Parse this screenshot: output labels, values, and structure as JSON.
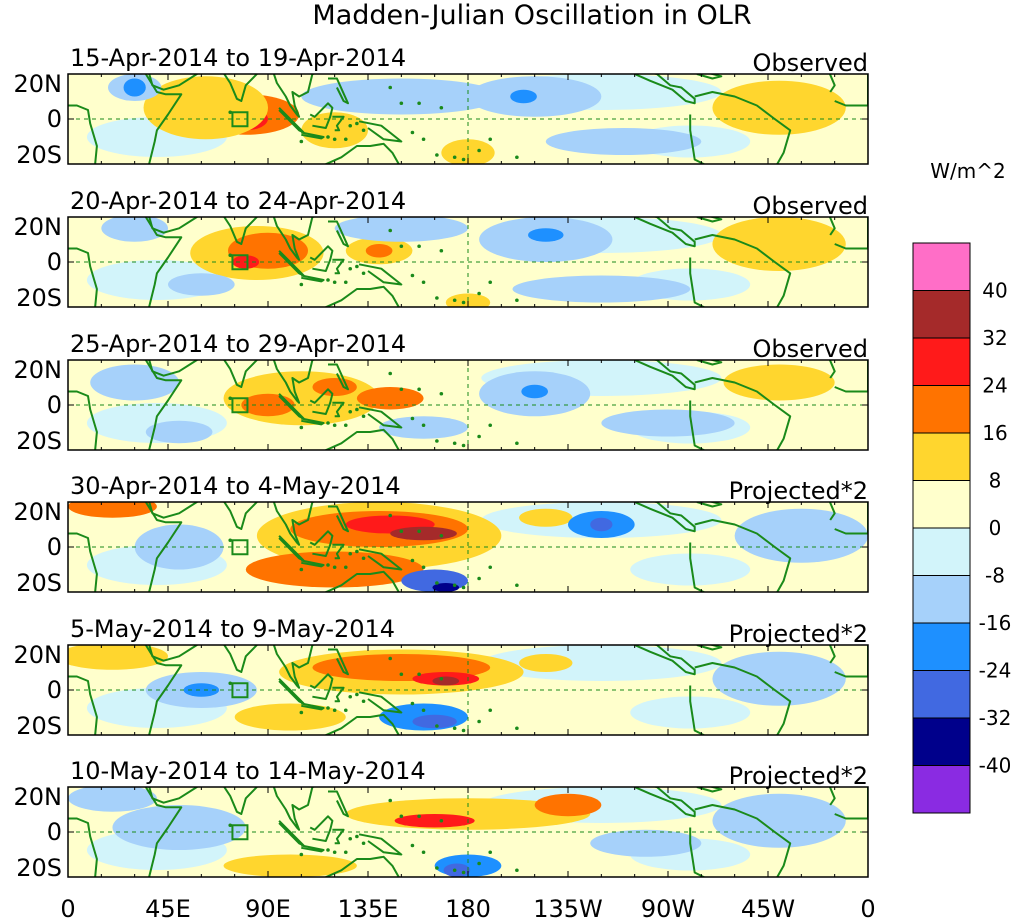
{
  "title": "Madden-Julian Oscillation in OLR",
  "panels": [
    {
      "period": "15-Apr-2014 to 19-Apr-2014",
      "type": "Observed"
    },
    {
      "period": "20-Apr-2014 to 24-Apr-2014",
      "type": "Observed"
    },
    {
      "period": "25-Apr-2014 to 29-Apr-2014",
      "type": "Observed"
    },
    {
      "period": "30-Apr-2014 to 4-May-2014",
      "type": "Projected*2"
    },
    {
      "period": "5-May-2014 to 9-May-2014",
      "type": "Projected*2"
    },
    {
      "period": "10-May-2014 to 14-May-2014",
      "type": "Projected*2"
    }
  ],
  "lat_labels": [
    "20N",
    "0",
    "20S"
  ],
  "lon_labels": [
    "0",
    "45E",
    "90E",
    "135E",
    "180",
    "135W",
    "90W",
    "45W",
    "0"
  ],
  "colorbar": {
    "unit": "W/m^2",
    "labels": [
      "40",
      "32",
      "24",
      "16",
      "8",
      "0",
      "-8",
      "-16",
      "-24",
      "-32",
      "-40"
    ],
    "colors": [
      "#ff6ec7",
      "#a52a2a",
      "#ff1a1a",
      "#ff7300",
      "#ffd62e",
      "#ffffcc",
      "#d2f4fa",
      "#a6d1fa",
      "#1e90ff",
      "#4169e1",
      "#00008b",
      "#8a2be2"
    ]
  },
  "map_colors": {
    "land": "#1a8a1a",
    "zero": "#ffffcc",
    "weak_neg": "#d2f4fa"
  },
  "anomalies": [
    [
      {
        "lon": 80,
        "lat": 2,
        "rx": 24,
        "ry": 9,
        "c": 3
      },
      {
        "lon": 80,
        "lat": 0,
        "rx": 10,
        "ry": 5,
        "c": 2
      },
      {
        "lon": 62,
        "lat": 5,
        "rx": 28,
        "ry": 14,
        "c": 4
      },
      {
        "lon": 30,
        "lat": 14,
        "rx": 12,
        "ry": 6,
        "c": 7
      },
      {
        "lon": 30,
        "lat": 14,
        "rx": 5,
        "ry": 4,
        "c": 8
      },
      {
        "lon": 150,
        "lat": 10,
        "rx": 45,
        "ry": 8,
        "c": 7
      },
      {
        "lon": 210,
        "lat": 10,
        "rx": 30,
        "ry": 9,
        "c": 7
      },
      {
        "lon": 205,
        "lat": 10,
        "rx": 6,
        "ry": 3,
        "c": 8
      },
      {
        "lon": 180,
        "lat": -15,
        "rx": 12,
        "ry": 6,
        "c": 4
      },
      {
        "lon": 120,
        "lat": -5,
        "rx": 15,
        "ry": 8,
        "c": 4
      },
      {
        "lon": 320,
        "lat": 5,
        "rx": 30,
        "ry": 12,
        "c": 4
      },
      {
        "lon": 250,
        "lat": -10,
        "rx": 35,
        "ry": 6,
        "c": 7
      }
    ],
    [
      {
        "lon": 85,
        "lat": 4,
        "rx": 30,
        "ry": 12,
        "c": 4
      },
      {
        "lon": 90,
        "lat": 5,
        "rx": 18,
        "ry": 8,
        "c": 3
      },
      {
        "lon": 80,
        "lat": 0,
        "rx": 6,
        "ry": 3,
        "c": 2
      },
      {
        "lon": 140,
        "lat": 5,
        "rx": 15,
        "ry": 6,
        "c": 4
      },
      {
        "lon": 140,
        "lat": 5,
        "rx": 6,
        "ry": 3,
        "c": 3
      },
      {
        "lon": 30,
        "lat": 15,
        "rx": 15,
        "ry": 6,
        "c": 7
      },
      {
        "lon": 60,
        "lat": -10,
        "rx": 15,
        "ry": 5,
        "c": 7
      },
      {
        "lon": 150,
        "lat": 15,
        "rx": 30,
        "ry": 6,
        "c": 7
      },
      {
        "lon": 215,
        "lat": 10,
        "rx": 30,
        "ry": 10,
        "c": 7
      },
      {
        "lon": 215,
        "lat": 12,
        "rx": 8,
        "ry": 3,
        "c": 8
      },
      {
        "lon": 180,
        "lat": -18,
        "rx": 10,
        "ry": 4,
        "c": 4
      },
      {
        "lon": 320,
        "lat": 8,
        "rx": 30,
        "ry": 12,
        "c": 4
      },
      {
        "lon": 240,
        "lat": -12,
        "rx": 40,
        "ry": 6,
        "c": 7
      }
    ],
    [
      {
        "lon": 105,
        "lat": 3,
        "rx": 35,
        "ry": 12,
        "c": 4
      },
      {
        "lon": 90,
        "lat": 0,
        "rx": 12,
        "ry": 5,
        "c": 3
      },
      {
        "lon": 120,
        "lat": 8,
        "rx": 10,
        "ry": 4,
        "c": 3
      },
      {
        "lon": 145,
        "lat": 3,
        "rx": 15,
        "ry": 5,
        "c": 3
      },
      {
        "lon": 30,
        "lat": 10,
        "rx": 20,
        "ry": 8,
        "c": 7
      },
      {
        "lon": 50,
        "lat": -12,
        "rx": 15,
        "ry": 5,
        "c": 7
      },
      {
        "lon": 210,
        "lat": 5,
        "rx": 25,
        "ry": 10,
        "c": 7
      },
      {
        "lon": 210,
        "lat": 6,
        "rx": 6,
        "ry": 3,
        "c": 8
      },
      {
        "lon": 160,
        "lat": -10,
        "rx": 20,
        "ry": 5,
        "c": 7
      },
      {
        "lon": 320,
        "lat": 10,
        "rx": 25,
        "ry": 8,
        "c": 4
      },
      {
        "lon": 270,
        "lat": -8,
        "rx": 30,
        "ry": 6,
        "c": 7
      }
    ],
    [
      {
        "lon": 140,
        "lat": 5,
        "rx": 55,
        "ry": 15,
        "c": 4
      },
      {
        "lon": 140,
        "lat": 8,
        "rx": 40,
        "ry": 8,
        "c": 3
      },
      {
        "lon": 145,
        "lat": 10,
        "rx": 20,
        "ry": 4,
        "c": 2
      },
      {
        "lon": 160,
        "lat": 6,
        "rx": 15,
        "ry": 3,
        "c": 1
      },
      {
        "lon": 120,
        "lat": -10,
        "rx": 40,
        "ry": 8,
        "c": 3
      },
      {
        "lon": 165,
        "lat": -15,
        "rx": 15,
        "ry": 5,
        "c": 9
      },
      {
        "lon": 170,
        "lat": -18,
        "rx": 6,
        "ry": 2,
        "c": 10
      },
      {
        "lon": 20,
        "lat": 18,
        "rx": 20,
        "ry": 5,
        "c": 3
      },
      {
        "lon": 50,
        "lat": 0,
        "rx": 20,
        "ry": 10,
        "c": 7
      },
      {
        "lon": 215,
        "lat": 13,
        "rx": 12,
        "ry": 4,
        "c": 4
      },
      {
        "lon": 240,
        "lat": 10,
        "rx": 15,
        "ry": 6,
        "c": 8
      },
      {
        "lon": 240,
        "lat": 10,
        "rx": 5,
        "ry": 3,
        "c": 9
      },
      {
        "lon": 330,
        "lat": 5,
        "rx": 30,
        "ry": 12,
        "c": 7
      }
    ],
    [
      {
        "lon": 150,
        "lat": 8,
        "rx": 55,
        "ry": 10,
        "c": 4
      },
      {
        "lon": 150,
        "lat": 10,
        "rx": 40,
        "ry": 6,
        "c": 3
      },
      {
        "lon": 170,
        "lat": 5,
        "rx": 15,
        "ry": 3,
        "c": 2
      },
      {
        "lon": 170,
        "lat": 4,
        "rx": 6,
        "ry": 2,
        "c": 1
      },
      {
        "lon": 215,
        "lat": 12,
        "rx": 12,
        "ry": 4,
        "c": 4
      },
      {
        "lon": 100,
        "lat": -12,
        "rx": 25,
        "ry": 6,
        "c": 4
      },
      {
        "lon": 160,
        "lat": -12,
        "rx": 20,
        "ry": 6,
        "c": 8
      },
      {
        "lon": 165,
        "lat": -14,
        "rx": 10,
        "ry": 3,
        "c": 9
      },
      {
        "lon": 60,
        "lat": 0,
        "rx": 25,
        "ry": 8,
        "c": 7
      },
      {
        "lon": 60,
        "lat": 0,
        "rx": 8,
        "ry": 3,
        "c": 8
      },
      {
        "lon": 20,
        "lat": 15,
        "rx": 25,
        "ry": 6,
        "c": 4
      },
      {
        "lon": 320,
        "lat": 5,
        "rx": 30,
        "ry": 12,
        "c": 7
      }
    ],
    [
      {
        "lon": 180,
        "lat": 8,
        "rx": 55,
        "ry": 7,
        "c": 4
      },
      {
        "lon": 165,
        "lat": 5,
        "rx": 18,
        "ry": 3,
        "c": 2
      },
      {
        "lon": 225,
        "lat": 12,
        "rx": 15,
        "ry": 5,
        "c": 3
      },
      {
        "lon": 100,
        "lat": -15,
        "rx": 30,
        "ry": 5,
        "c": 4
      },
      {
        "lon": 180,
        "lat": -15,
        "rx": 15,
        "ry": 5,
        "c": 8
      },
      {
        "lon": 175,
        "lat": -17,
        "rx": 6,
        "ry": 3,
        "c": 9
      },
      {
        "lon": 50,
        "lat": 2,
        "rx": 30,
        "ry": 10,
        "c": 7
      },
      {
        "lon": 20,
        "lat": 15,
        "rx": 20,
        "ry": 6,
        "c": 7
      },
      {
        "lon": 320,
        "lat": 5,
        "rx": 30,
        "ry": 12,
        "c": 7
      },
      {
        "lon": 260,
        "lat": -5,
        "rx": 25,
        "ry": 6,
        "c": 7
      }
    ]
  ]
}
